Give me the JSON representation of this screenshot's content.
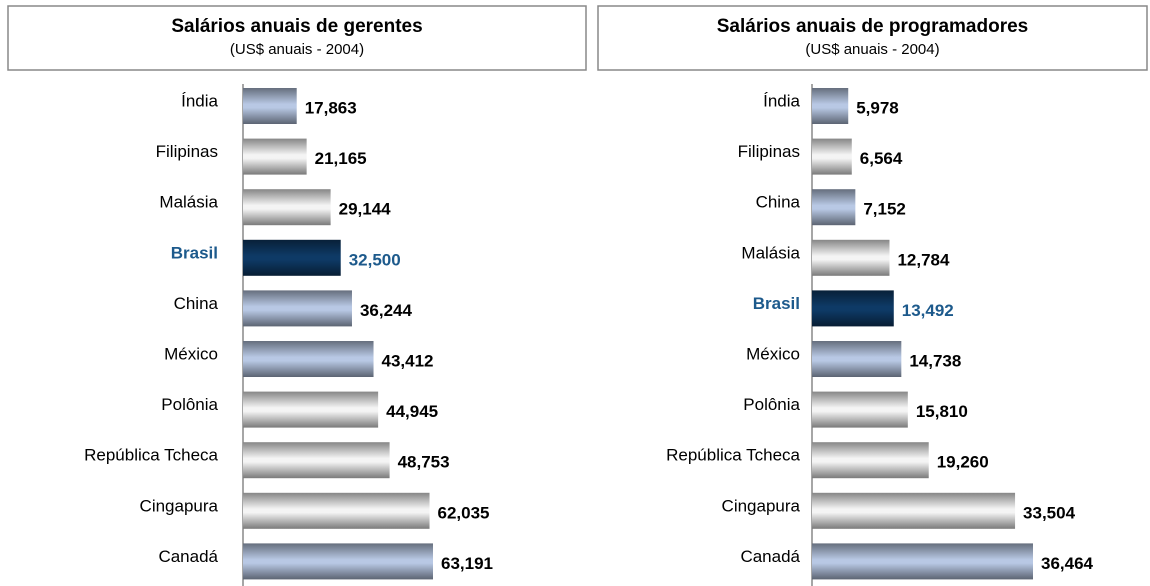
{
  "chart_data": [
    {
      "type": "bar",
      "title": "Salários anuais de gerentes",
      "subtitle": "(US$ anuais - 2004)",
      "categories": [
        "Índia",
        "Filipinas",
        "Malásia",
        "Brasil",
        "China",
        "México",
        "Polônia",
        "República Tcheca",
        "Cingapura",
        "Canadá"
      ],
      "values": [
        17863,
        21165,
        29144,
        32500,
        36244,
        43412,
        44945,
        48753,
        62035,
        63191
      ],
      "value_labels": [
        "17,863",
        "21,165",
        "29,144",
        "32,500",
        "36,244",
        "43,412",
        "44,945",
        "48,753",
        "62,035",
        "63,191"
      ],
      "colors": [
        "#b8c8e4",
        "#f4f4f4",
        "#f4f4f4",
        "#0e3a66",
        "#b8c8e4",
        "#b8c8e4",
        "#f4f4f4",
        "#f4f4f4",
        "#f4f4f4",
        "#b8c8e4"
      ],
      "label_colors": [
        "#000000",
        "#000000",
        "#000000",
        "#1d5a8c",
        "#000000",
        "#000000",
        "#000000",
        "#000000",
        "#000000",
        "#000000"
      ]
    },
    {
      "type": "bar",
      "title": "Salários anuais de programadores",
      "subtitle": "(US$ anuais - 2004)",
      "categories": [
        "Índia",
        "Filipinas",
        "China",
        "Malásia",
        "Brasil",
        "México",
        "Polônia",
        "República Tcheca",
        "Cingapura",
        "Canadá"
      ],
      "values": [
        5978,
        6564,
        7152,
        12784,
        13492,
        14738,
        15810,
        19260,
        33504,
        36464
      ],
      "value_labels": [
        "5,978",
        "6,564",
        "7,152",
        "12,784",
        "13,492",
        "14,738",
        "15,810",
        "19,260",
        "33,504",
        "36,464"
      ],
      "colors": [
        "#b8c8e4",
        "#f4f4f4",
        "#b8c8e4",
        "#f4f4f4",
        "#0e3a66",
        "#b8c8e4",
        "#f4f4f4",
        "#f4f4f4",
        "#f4f4f4",
        "#b8c8e4"
      ],
      "label_colors": [
        "#000000",
        "#000000",
        "#000000",
        "#000000",
        "#1d5a8c",
        "#000000",
        "#000000",
        "#000000",
        "#000000",
        "#000000"
      ]
    }
  ]
}
